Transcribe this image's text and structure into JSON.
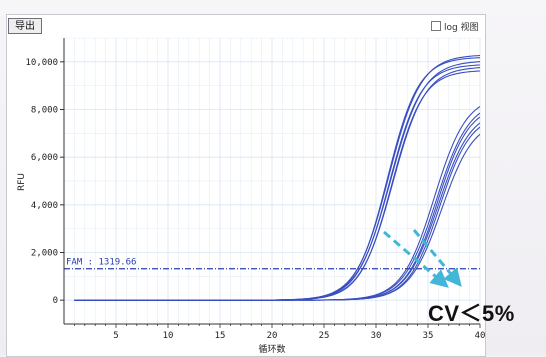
{
  "toolbar": {
    "export_label": "导出",
    "log_view_label": "log 视图"
  },
  "annotation": {
    "cv_text": "CV＜5%"
  },
  "colors": {
    "curve": "#3a4fc0",
    "threshold": "#2a3fae",
    "arrow": "#42b6d8",
    "grid": "#d8e4f4"
  },
  "chart_data": {
    "type": "line",
    "xlabel": "循环数",
    "ylabel": "RFU",
    "xlim": [
      0,
      40
    ],
    "ylim": [
      -1000,
      11000
    ],
    "x_ticks": [
      5,
      10,
      15,
      20,
      25,
      30,
      35,
      40
    ],
    "y_ticks": [
      0,
      2000,
      4000,
      6000,
      8000,
      10000
    ],
    "y_tick_labels": [
      "0",
      "2,000",
      "4,000",
      "6,000",
      "8,000",
      "10,000"
    ],
    "grid": true,
    "threshold": {
      "label": "FAM : 1319.66",
      "value": 1319.66
    },
    "x_start": 1,
    "series": [
      {
        "midpoint": 31.2,
        "slope": 1.55,
        "plateau": 10300
      },
      {
        "midpoint": 31.1,
        "slope": 1.5,
        "plateau": 10200
      },
      {
        "midpoint": 31.4,
        "slope": 1.58,
        "plateau": 10050
      },
      {
        "midpoint": 31.3,
        "slope": 1.52,
        "plateau": 9900
      },
      {
        "midpoint": 31.6,
        "slope": 1.55,
        "plateau": 9800
      },
      {
        "midpoint": 31.5,
        "slope": 1.5,
        "plateau": 9650
      },
      {
        "midpoint": 35.6,
        "slope": 1.55,
        "plateau": 8600
      },
      {
        "midpoint": 35.8,
        "slope": 1.58,
        "plateau": 8400
      },
      {
        "midpoint": 35.9,
        "slope": 1.52,
        "plateau": 8200
      },
      {
        "midpoint": 36.0,
        "slope": 1.55,
        "plateau": 8000
      },
      {
        "midpoint": 36.1,
        "slope": 1.5,
        "plateau": 7800
      },
      {
        "midpoint": 36.3,
        "slope": 1.55,
        "plateau": 7600
      }
    ]
  }
}
